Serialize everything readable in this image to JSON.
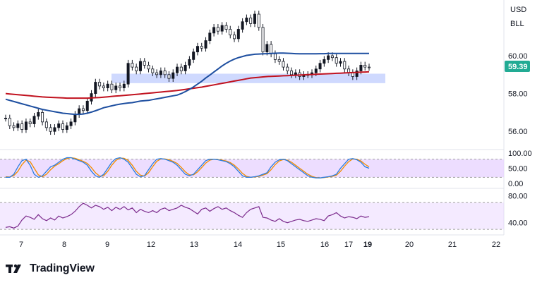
{
  "brand": {
    "name": "TradingView",
    "icon": "tradingview-logo-icon"
  },
  "chart_data": {
    "type": "line",
    "price_axis_labels": [
      "USD",
      "BLL"
    ],
    "current_price": "59.39",
    "colors": {
      "current_price_badge": "#22ab94",
      "ma_fast": "#1e4fa0",
      "ma_slow": "#c1121f",
      "support_zone": "#c7d2fe",
      "oscillator_band": "#e9d5ff",
      "stoch_k": "#2a7de1",
      "stoch_d": "#f08c00",
      "rsi": "#7b2a8c",
      "candles": "#131722"
    },
    "x_tick_labels": [
      "7",
      "8",
      "9",
      "12",
      "13",
      "14",
      "15",
      "16",
      "17",
      "19",
      "20",
      "21",
      "22"
    ],
    "x_highlighted_tick": "19",
    "price_panel": {
      "y_tick_labels": [
        "60.00",
        "58.00",
        "56.00"
      ],
      "y_tick_values": [
        60,
        58,
        56
      ],
      "ylim": [
        55.3,
        62.5
      ],
      "support_zone": [
        58.55,
        59.05
      ]
    },
    "stochastic_panel": {
      "y_tick_labels": [
        "100.00",
        "50.00",
        "0.00"
      ],
      "y_tick_values": [
        100,
        50,
        0
      ],
      "ylim": [
        -5,
        105
      ],
      "band": [
        20,
        80
      ]
    },
    "rsi_panel": {
      "y_tick_labels": [
        "80.00",
        "40.00"
      ],
      "y_tick_values": [
        80,
        40
      ],
      "ylim": [
        27,
        86
      ],
      "band": [
        30,
        70
      ]
    },
    "price_close": [
      56.7,
      56.3,
      56.2,
      56.4,
      56.1,
      56.5,
      56.4,
      56.8,
      57.0,
      56.5,
      56.2,
      56.0,
      56.2,
      56.4,
      56.1,
      56.3,
      56.5,
      56.9,
      57.2,
      57.1,
      57.6,
      58.0,
      58.6,
      58.4,
      58.3,
      58.5,
      58.2,
      58.4,
      58.3,
      58.5,
      59.6,
      59.4,
      59.2,
      59.7,
      59.5,
      59.3,
      59.1,
      59.0,
      59.2,
      59.0,
      58.8,
      59.1,
      59.4,
      59.2,
      59.5,
      59.8,
      60.2,
      60.5,
      60.4,
      60.8,
      61.2,
      61.5,
      61.3,
      61.6,
      61.4,
      61.1,
      60.9,
      61.4,
      61.8,
      62.0,
      61.7,
      62.2,
      61.5,
      60.2,
      60.6,
      60.1,
      59.8,
      59.7,
      59.4,
      59.2,
      59.0,
      59.1,
      58.9,
      59.0,
      59.0,
      59.1,
      59.3,
      59.6,
      59.8,
      60.0,
      59.9,
      59.6,
      59.7,
      59.3,
      59.1,
      58.9,
      59.2,
      59.5,
      59.4,
      59.39
    ],
    "ma_fast": [
      57.7,
      57.64,
      57.58,
      57.52,
      57.46,
      57.4,
      57.34,
      57.28,
      57.22,
      57.16,
      57.12,
      57.08,
      57.04,
      57.0,
      56.96,
      56.94,
      56.92,
      56.9,
      56.9,
      56.92,
      56.96,
      57.02,
      57.09,
      57.17,
      57.25,
      57.3,
      57.35,
      57.4,
      57.44,
      57.47,
      57.5,
      57.52,
      57.56,
      57.6,
      57.62,
      57.64,
      57.68,
      57.72,
      57.76,
      57.8,
      57.84,
      57.88,
      57.92,
      58.0,
      58.1,
      58.22,
      58.35,
      58.5,
      58.65,
      58.82,
      58.98,
      59.14,
      59.3,
      59.46,
      59.6,
      59.72,
      59.82,
      59.9,
      59.96,
      60.02,
      60.05,
      60.08,
      60.09,
      60.1,
      60.11,
      60.12,
      60.13,
      60.14,
      60.14,
      60.13,
      60.12,
      60.11,
      60.1,
      60.1,
      60.1,
      60.1,
      60.1,
      60.11,
      60.11,
      60.12,
      60.12,
      60.12,
      60.12,
      60.12,
      60.12,
      60.12,
      60.12,
      60.12,
      60.12,
      60.12
    ],
    "ma_slow": [
      58.0,
      57.98,
      57.96,
      57.94,
      57.92,
      57.9,
      57.88,
      57.86,
      57.84,
      57.82,
      57.81,
      57.8,
      57.79,
      57.78,
      57.77,
      57.76,
      57.76,
      57.76,
      57.76,
      57.76,
      57.76,
      57.77,
      57.78,
      57.79,
      57.81,
      57.83,
      57.85,
      57.87,
      57.88,
      57.9,
      57.92,
      57.94,
      57.96,
      57.98,
      58.0,
      58.02,
      58.04,
      58.06,
      58.08,
      58.1,
      58.12,
      58.14,
      58.16,
      58.19,
      58.22,
      58.25,
      58.28,
      58.31,
      58.34,
      58.38,
      58.42,
      58.46,
      58.5,
      58.54,
      58.58,
      58.62,
      58.66,
      58.7,
      58.74,
      58.78,
      58.82,
      58.84,
      58.86,
      58.88,
      58.9,
      58.91,
      58.92,
      58.93,
      58.94,
      58.95,
      58.96,
      58.97,
      58.98,
      58.99,
      59.0,
      59.01,
      59.02,
      59.03,
      59.04,
      59.05,
      59.06,
      59.07,
      59.08,
      59.09,
      59.1,
      59.11,
      59.12,
      59.13,
      59.14,
      59.15
    ],
    "stoch_k": [
      20,
      20,
      30,
      55,
      75,
      80,
      60,
      30,
      20,
      25,
      40,
      55,
      60,
      70,
      80,
      85,
      85,
      80,
      75,
      70,
      60,
      40,
      25,
      20,
      30,
      50,
      70,
      82,
      85,
      80,
      70,
      50,
      30,
      22,
      25,
      45,
      65,
      80,
      82,
      80,
      75,
      70,
      60,
      45,
      30,
      25,
      30,
      45,
      60,
      75,
      80,
      80,
      78,
      75,
      72,
      65,
      55,
      40,
      25,
      20,
      20,
      22,
      25,
      30,
      35,
      55,
      70,
      78,
      80,
      75,
      65,
      55,
      45,
      35,
      25,
      20,
      18,
      18,
      20,
      22,
      25,
      30,
      50,
      65,
      80,
      82,
      78,
      70,
      55,
      50
    ],
    "stoch_d": [
      22,
      21,
      26,
      40,
      62,
      77,
      72,
      50,
      28,
      22,
      30,
      45,
      57,
      65,
      75,
      82,
      85,
      83,
      78,
      73,
      66,
      52,
      35,
      24,
      25,
      40,
      60,
      76,
      84,
      83,
      76,
      60,
      40,
      27,
      24,
      35,
      55,
      73,
      81,
      81,
      78,
      73,
      66,
      53,
      38,
      28,
      28,
      38,
      52,
      67,
      77,
      80,
      79,
      77,
      74,
      69,
      60,
      48,
      33,
      23,
      20,
      21,
      23,
      27,
      32,
      45,
      62,
      74,
      79,
      77,
      70,
      60,
      50,
      40,
      30,
      23,
      19,
      18,
      19,
      21,
      23,
      27,
      40,
      57,
      72,
      81,
      80,
      74,
      63,
      55
    ],
    "rsi": [
      33,
      34,
      32,
      35,
      44,
      50,
      48,
      45,
      52,
      46,
      43,
      47,
      44,
      50,
      47,
      49,
      52,
      57,
      64,
      69,
      66,
      62,
      66,
      64,
      60,
      63,
      58,
      63,
      60,
      64,
      59,
      62,
      55,
      60,
      57,
      55,
      58,
      55,
      60,
      62,
      58,
      60,
      62,
      66,
      63,
      61,
      57,
      53,
      60,
      62,
      57,
      61,
      64,
      60,
      62,
      58,
      55,
      51,
      48,
      55,
      60,
      62,
      64,
      48,
      47,
      44,
      42,
      46,
      42,
      40,
      42,
      44,
      45,
      43,
      42,
      44,
      46,
      45,
      43,
      50,
      52,
      55,
      50,
      47,
      49,
      48,
      46,
      50,
      48,
      49
    ]
  }
}
